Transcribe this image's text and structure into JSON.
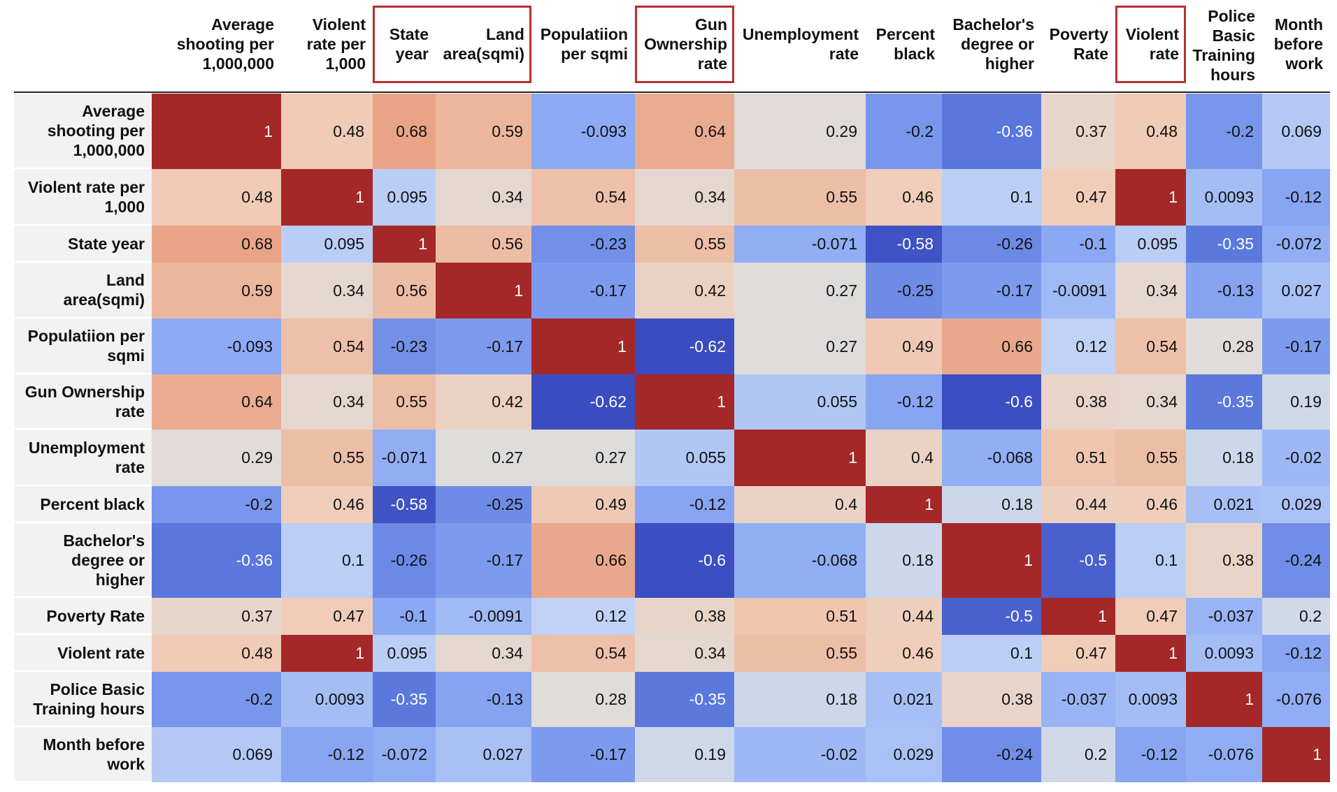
{
  "chart_data": {
    "type": "heatmap",
    "title": "",
    "column_labels": [
      [
        "Average",
        "shooting per",
        "1,000,000"
      ],
      [
        "Violent",
        "rate per",
        "1,000"
      ],
      [
        "State",
        "year"
      ],
      [
        "Land",
        "area(sqmi)"
      ],
      [
        "Populatiion",
        "per sqmi"
      ],
      [
        "Gun",
        "Ownership",
        "rate"
      ],
      [
        "Unemployment",
        "rate"
      ],
      [
        "Percent",
        "black"
      ],
      [
        "Bachelor's",
        "degree or",
        "higher"
      ],
      [
        "Poverty",
        "Rate"
      ],
      [
        "Violent",
        "rate"
      ],
      [
        "Police",
        "Basic",
        "Training",
        "hours"
      ],
      [
        "Month",
        "before",
        "work"
      ]
    ],
    "row_labels": [
      [
        "Average",
        "shooting per",
        "1,000,000"
      ],
      [
        "Violent rate per",
        "1,000"
      ],
      [
        "State year"
      ],
      [
        "Land",
        "area(sqmi)"
      ],
      [
        "Populatiion per",
        "sqmi"
      ],
      [
        "Gun Ownership",
        "rate"
      ],
      [
        "Unemployment",
        "rate"
      ],
      [
        "Percent black"
      ],
      [
        "Bachelor's",
        "degree or",
        "higher"
      ],
      [
        "Poverty Rate"
      ],
      [
        "Violent rate"
      ],
      [
        "Police Basic",
        "Training hours"
      ],
      [
        "Month before",
        "work"
      ]
    ],
    "value_labels": [
      [
        "1",
        "0.48",
        "0.68",
        "0.59",
        "-0.093",
        "0.64",
        "0.29",
        "-0.2",
        "-0.36",
        "0.37",
        "0.48",
        "-0.2",
        "0.069"
      ],
      [
        "0.48",
        "1",
        "0.095",
        "0.34",
        "0.54",
        "0.34",
        "0.55",
        "0.46",
        "0.1",
        "0.47",
        "1",
        "0.0093",
        "-0.12"
      ],
      [
        "0.68",
        "0.095",
        "1",
        "0.56",
        "-0.23",
        "0.55",
        "-0.071",
        "-0.58",
        "-0.26",
        "-0.1",
        "0.095",
        "-0.35",
        "-0.072"
      ],
      [
        "0.59",
        "0.34",
        "0.56",
        "1",
        "-0.17",
        "0.42",
        "0.27",
        "-0.25",
        "-0.17",
        "-0.0091",
        "0.34",
        "-0.13",
        "0.027"
      ],
      [
        "-0.093",
        "0.54",
        "-0.23",
        "-0.17",
        "1",
        "-0.62",
        "0.27",
        "0.49",
        "0.66",
        "0.12",
        "0.54",
        "0.28",
        "-0.17"
      ],
      [
        "0.64",
        "0.34",
        "0.55",
        "0.42",
        "-0.62",
        "1",
        "0.055",
        "-0.12",
        "-0.6",
        "0.38",
        "0.34",
        "-0.35",
        "0.19"
      ],
      [
        "0.29",
        "0.55",
        "-0.071",
        "0.27",
        "0.27",
        "0.055",
        "1",
        "0.4",
        "-0.068",
        "0.51",
        "0.55",
        "0.18",
        "-0.02"
      ],
      [
        "-0.2",
        "0.46",
        "-0.58",
        "-0.25",
        "0.49",
        "-0.12",
        "0.4",
        "1",
        "0.18",
        "0.44",
        "0.46",
        "0.021",
        "0.029"
      ],
      [
        "-0.36",
        "0.1",
        "-0.26",
        "-0.17",
        "0.66",
        "-0.6",
        "-0.068",
        "0.18",
        "1",
        "-0.5",
        "0.1",
        "0.38",
        "-0.24"
      ],
      [
        "0.37",
        "0.47",
        "-0.1",
        "-0.0091",
        "0.12",
        "0.38",
        "0.51",
        "0.44",
        "-0.5",
        "1",
        "0.47",
        "-0.037",
        "0.2"
      ],
      [
        "0.48",
        "1",
        "0.095",
        "0.34",
        "0.54",
        "0.34",
        "0.55",
        "0.46",
        "0.1",
        "0.47",
        "1",
        "0.0093",
        "-0.12"
      ],
      [
        "-0.2",
        "0.0093",
        "-0.35",
        "-0.13",
        "0.28",
        "-0.35",
        "0.18",
        "0.021",
        "0.38",
        "-0.037",
        "0.0093",
        "1",
        "-0.076"
      ],
      [
        "0.069",
        "-0.12",
        "-0.072",
        "0.027",
        "-0.17",
        "0.19",
        "-0.02",
        "0.029",
        "-0.24",
        "0.2",
        "-0.12",
        "-0.076",
        "1"
      ]
    ],
    "value_range": [
      -0.62,
      1
    ],
    "colormap": "coolwarm",
    "highlighted_columns": [
      2,
      3,
      5,
      10
    ],
    "colors": {
      "highlight": "#b5312f",
      "row_label_bg": "#f2f2f2",
      "text_dark": "#111111",
      "text_light": "#ffffff"
    }
  }
}
